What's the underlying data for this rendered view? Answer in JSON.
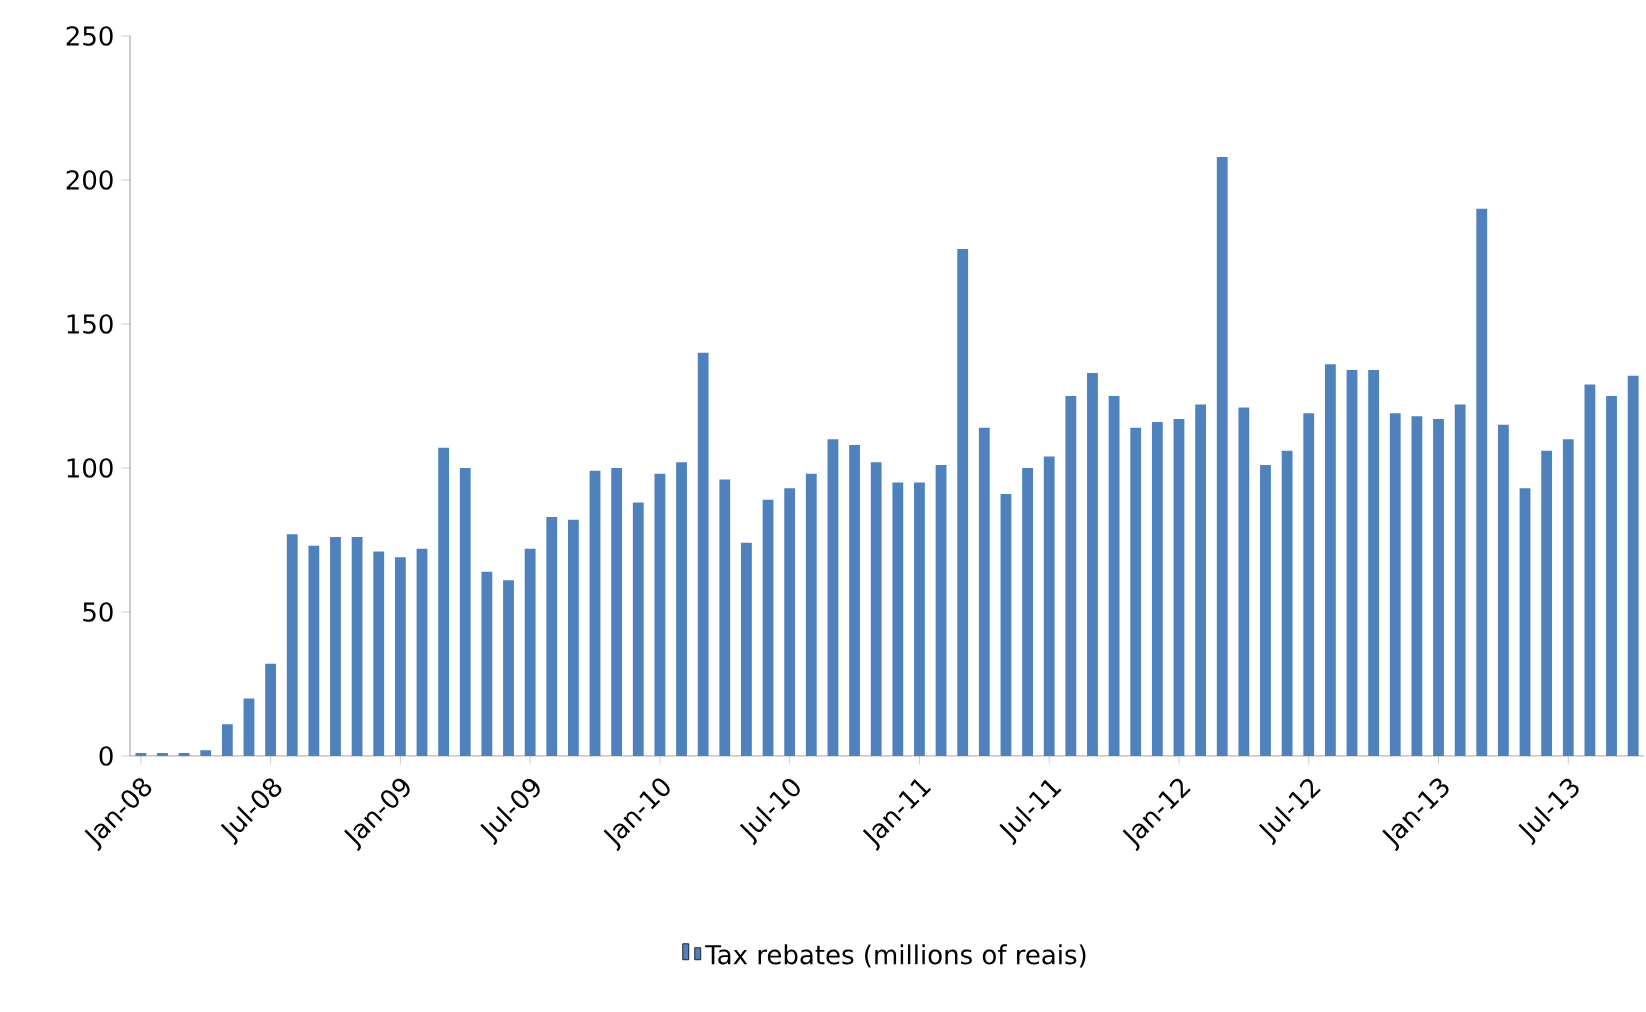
{
  "chart_data": {
    "type": "bar",
    "categories": [
      "Jan-08",
      null,
      null,
      null,
      null,
      null,
      "Jul-08",
      null,
      null,
      null,
      null,
      null,
      "Jan-09",
      null,
      null,
      null,
      null,
      null,
      "Jul-09",
      null,
      null,
      null,
      null,
      null,
      "Jan-10",
      null,
      null,
      null,
      null,
      null,
      "Jul-10",
      null,
      null,
      null,
      null,
      null,
      "Jan-11",
      null,
      null,
      null,
      null,
      null,
      "Jul-11",
      null,
      null,
      null,
      null,
      null,
      "Jan-12",
      null,
      null,
      null,
      null,
      null,
      "Jul-12",
      null,
      null,
      null,
      null,
      null,
      "Jan-13",
      null,
      null,
      null,
      null,
      null,
      "Jul-13",
      null,
      null,
      null
    ],
    "series": [
      {
        "name": "Tax rebates (millions of reais)",
        "color": "#4f81bd",
        "values": [
          1,
          1,
          1,
          2,
          11,
          20,
          32,
          77,
          73,
          76,
          76,
          71,
          69,
          72,
          107,
          100,
          64,
          61,
          72,
          83,
          82,
          99,
          100,
          88,
          98,
          102,
          140,
          96,
          74,
          89,
          93,
          98,
          110,
          108,
          102,
          95,
          95,
          101,
          176,
          114,
          91,
          100,
          104,
          125,
          133,
          125,
          114,
          116,
          117,
          122,
          208,
          121,
          101,
          106,
          119,
          136,
          134,
          134,
          119,
          118,
          117,
          122,
          190,
          115,
          93,
          106,
          110,
          129,
          125,
          132
        ]
      }
    ],
    "ylim": [
      0,
      250
    ],
    "yticks": [
      0,
      50,
      100,
      150,
      200,
      250
    ],
    "grid": false,
    "legend": "bottom"
  }
}
